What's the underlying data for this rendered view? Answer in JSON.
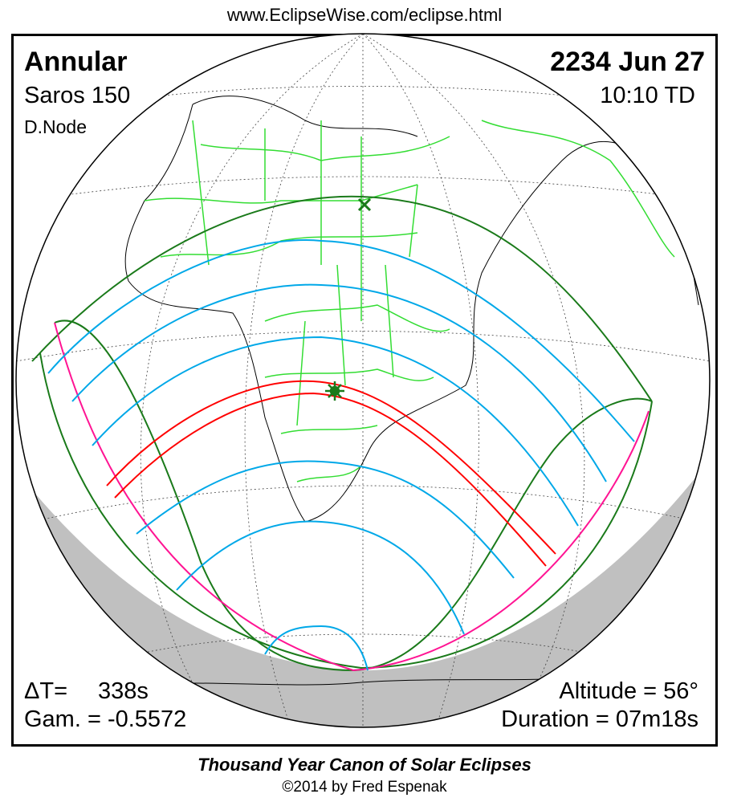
{
  "url": "www.EclipseWise.com/eclipse.html",
  "eclipse": {
    "type": "Annular",
    "date": "2234 Jun 27",
    "saros": "Saros 150",
    "time": "10:10 TD",
    "node": "D.Node",
    "delta_t_label": "ΔT=",
    "delta_t": "338s",
    "gamma": "Gam. = -0.5572",
    "altitude": "Altitude = 56°",
    "duration": "Duration = 07m18s"
  },
  "footer": {
    "title": "Thousand Year Canon of Solar Eclipses",
    "copyright": "©2014 by Fred Espenak"
  },
  "colors": {
    "central_path": "#ff0000",
    "penumbral_limits": "#1a7a1a",
    "magnitude_curves": "#00a8e8",
    "rise_set": "#ff1493",
    "borders": "#33dd33",
    "night": "#c0c0c0"
  }
}
